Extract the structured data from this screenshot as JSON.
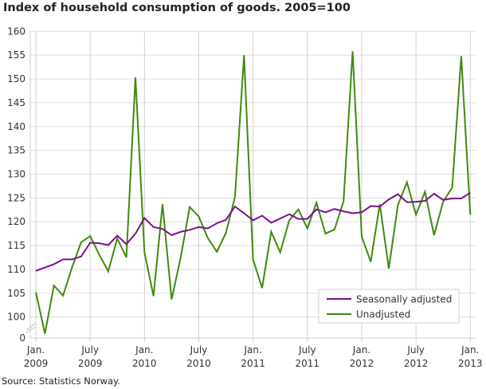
{
  "chart_data": {
    "type": "line",
    "title": "Index of household consumption of goods. 2005=100",
    "source": "Source: Statistics Norway.",
    "ylim": [
      100,
      160
    ],
    "yticks": [
      "160",
      "155",
      "150",
      "145",
      "140",
      "135",
      "130",
      "125",
      "120",
      "115",
      "110",
      "105",
      "100"
    ],
    "y_break_label": "0",
    "xtick_labels": [
      {
        "month": "Jan.",
        "year": "2009"
      },
      {
        "month": "July",
        "year": "2009"
      },
      {
        "month": "Jan.",
        "year": "2010"
      },
      {
        "month": "July",
        "year": "2010"
      },
      {
        "month": "Jan.",
        "year": "2011"
      },
      {
        "month": "July",
        "year": "2011"
      },
      {
        "month": "Jan.",
        "year": "2012"
      },
      {
        "month": "July",
        "year": "2012"
      },
      {
        "month": "Jan.",
        "year": "2013"
      }
    ],
    "x_start": "2009-01",
    "x_end": "2013-01",
    "grid": true,
    "legend_position": "bottom-right",
    "series": [
      {
        "name": "Seasonally adjusted",
        "color": "#7b0f8c",
        "values": [
          109.7,
          110.4,
          111.1,
          112.1,
          112.1,
          112.7,
          115.6,
          115.5,
          115.1,
          117.1,
          115.3,
          117.5,
          120.8,
          118.9,
          118.5,
          117.2,
          117.9,
          118.3,
          118.9,
          118.6,
          119.7,
          120.4,
          123.2,
          121.8,
          120.3,
          121.3,
          119.8,
          120.7,
          121.6,
          120.6,
          120.6,
          122.6,
          122.0,
          122.7,
          122.2,
          121.8,
          122.0,
          123.3,
          123.2,
          124.7,
          125.8,
          124.1,
          124.2,
          124.4,
          125.9,
          124.6,
          124.9,
          124.9,
          126.1
        ]
      },
      {
        "name": "Unadjusted",
        "color": "#3f8a0c",
        "values": [
          105.2,
          96.5,
          106.6,
          104.5,
          110.4,
          115.7,
          117.0,
          113.1,
          109.6,
          116.5,
          112.5,
          150.3,
          113.6,
          104.4,
          123.7,
          103.7,
          112.5,
          123.1,
          121.1,
          116.6,
          113.7,
          117.7,
          125.2,
          155.0,
          112.1,
          106.1,
          117.9,
          113.6,
          120.3,
          122.6,
          118.6,
          124.0,
          117.5,
          118.4,
          124.3,
          155.8,
          116.9,
          111.6,
          123.7,
          110.2,
          123.5,
          128.3,
          121.5,
          126.3,
          117.2,
          124.2,
          127.2,
          154.8,
          121.5
        ]
      }
    ]
  }
}
